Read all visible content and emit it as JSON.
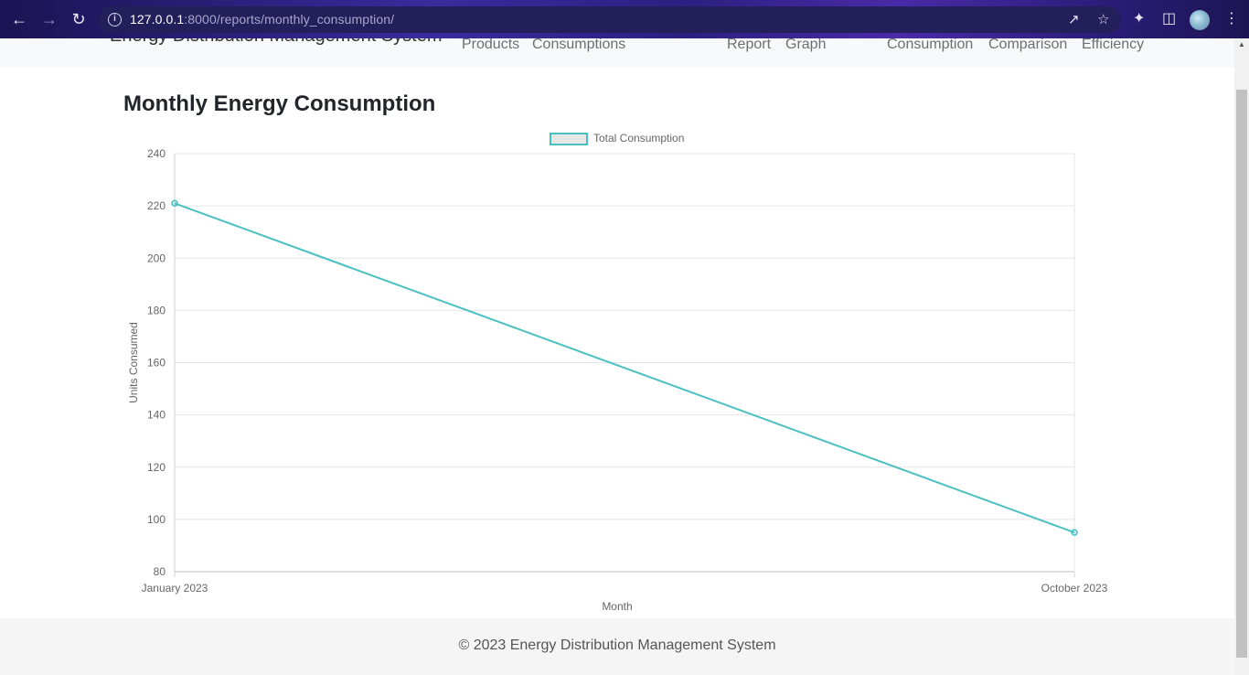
{
  "browser": {
    "url_host": "127.0.0.1",
    "url_rest": ":8000/reports/monthly_consumption/"
  },
  "navbar": {
    "brand": "Energy Distribution Management System",
    "links": [
      "Products",
      "Consumptions",
      "Report",
      "Graph",
      "Consumption",
      "Comparison",
      "Efficiency"
    ]
  },
  "main": {
    "title": "Monthly Energy Consumption"
  },
  "colors": {
    "series": "#4bc0c0",
    "series_fill": "rgba(75,192,192,0.2)"
  },
  "chart_data": {
    "type": "line",
    "title": "",
    "xlabel": "Month",
    "ylabel": "Units Consumed",
    "categories": [
      "January 2023",
      "October 2023"
    ],
    "series": [
      {
        "name": "Total Consumption",
        "values": [
          221,
          95
        ]
      }
    ],
    "ylim": [
      80,
      240
    ],
    "yticks": [
      80,
      100,
      120,
      140,
      160,
      180,
      200,
      220,
      240
    ],
    "grid": true,
    "legend": "top-center"
  },
  "footer": {
    "text": "© 2023 Energy Distribution Management System"
  }
}
